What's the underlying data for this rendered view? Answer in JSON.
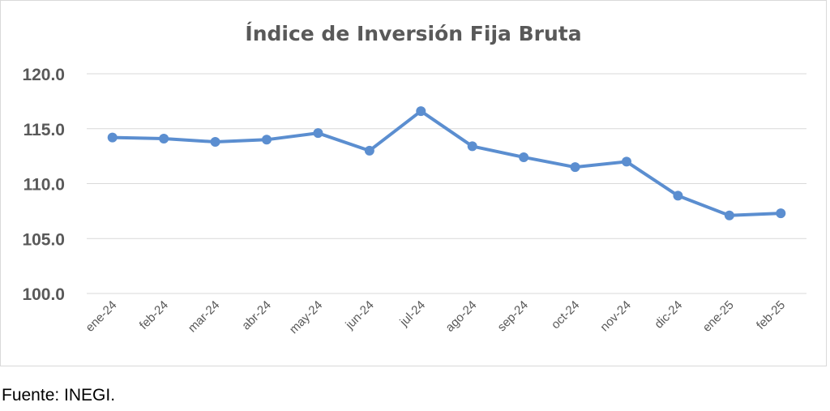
{
  "chart_data": {
    "type": "line",
    "title": "Índice de Inversión Fija Bruta",
    "xlabel": "",
    "ylabel": "",
    "categories": [
      "ene-24",
      "feb-24",
      "mar-24",
      "abr-24",
      "may-24",
      "jun-24",
      "jul-24",
      "ago-24",
      "sep-24",
      "oct-24",
      "nov-24",
      "dic-24",
      "ene-25",
      "feb-25"
    ],
    "series": [
      {
        "values": [
          114.2,
          114.1,
          113.8,
          114.0,
          114.6,
          113.0,
          116.6,
          113.4,
          112.4,
          111.5,
          112.0,
          108.9,
          107.1,
          107.3
        ],
        "color": "#5b8ed0"
      }
    ],
    "ylim": [
      100,
      120
    ],
    "yticks": [
      "100.0",
      "105.0",
      "110.0",
      "115.0",
      "120.0"
    ],
    "grid": true,
    "legend": "none"
  },
  "footer": {
    "source": "Fuente: INEGI."
  }
}
